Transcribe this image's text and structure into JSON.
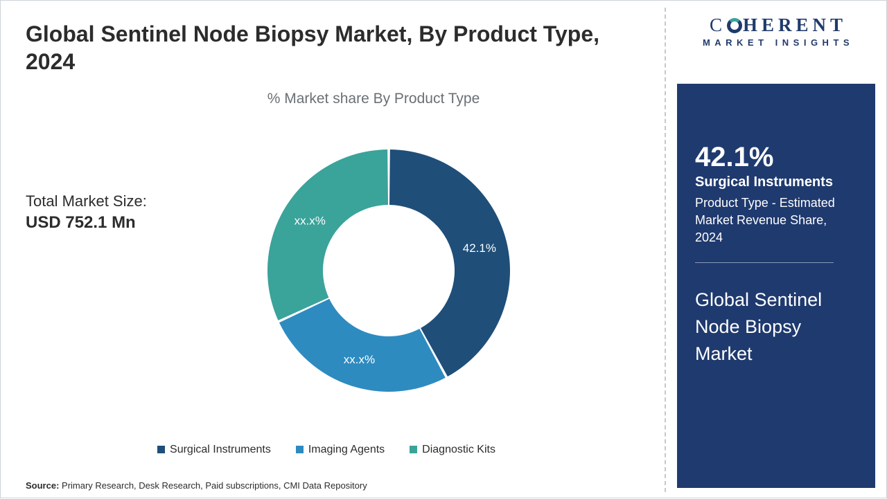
{
  "title": "Global Sentinel Node Biopsy Market, By Product Type, 2024",
  "subtitle": "% Market share By Product Type",
  "market_size": {
    "label": "Total Market Size:",
    "value": "USD 752.1 Mn"
  },
  "source": {
    "prefix": "Source:",
    "text": " Primary Research, Desk Research, Paid subscriptions, CMI Data Repository"
  },
  "logo": {
    "line1_plain": "C",
    "line1_bold": "HERENT",
    "line2": "MARKET INSIGHTS"
  },
  "panel": {
    "pct": "42.1%",
    "segment": "Surgical Instruments",
    "desc": "Product Type - Estimated Market Revenue Share, 2024",
    "market_name": "Global Sentinel Node Biopsy Market",
    "bg_color": "#1f3a6e"
  },
  "chart": {
    "type": "donut",
    "inner_radius": 95,
    "outer_radius": 175,
    "gap_deg": 1.2,
    "background_color": "#ffffff",
    "label_fontsize": 17,
    "label_color": "#ffffff",
    "slices": [
      {
        "name": "Surgical Instruments",
        "value": 42.1,
        "label": "42.1%",
        "color": "#1f4e79"
      },
      {
        "name": "Imaging Agents",
        "value": 26.0,
        "label": "xx.x%",
        "color": "#2e8bc0"
      },
      {
        "name": "Diagnostic Kits",
        "value": 31.9,
        "label": "xx.x%",
        "color": "#3aa39a"
      }
    ]
  },
  "legend": {
    "items": [
      {
        "label": "Surgical Instruments",
        "color": "#1f4e79"
      },
      {
        "label": "Imaging Agents",
        "color": "#2e8bc0"
      },
      {
        "label": "Diagnostic Kits",
        "color": "#3aa39a"
      }
    ],
    "fontsize": 16
  }
}
